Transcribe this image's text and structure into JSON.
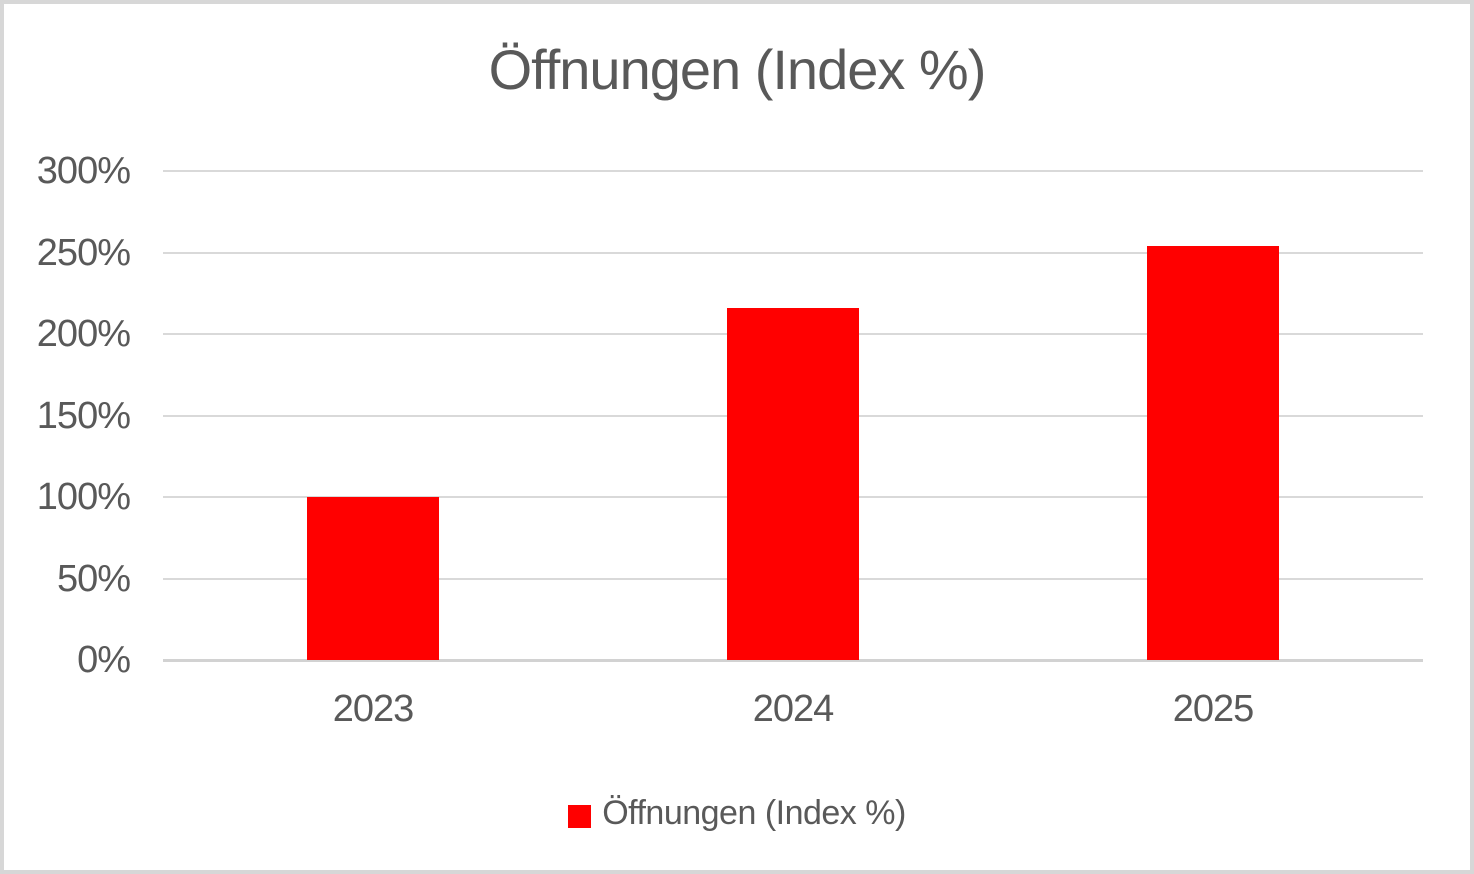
{
  "chart_data": {
    "type": "bar",
    "title": "Öffnungen (Index %)",
    "categories": [
      "2023",
      "2024",
      "2025"
    ],
    "series": [
      {
        "name": "Öffnungen (Index %)",
        "values": [
          100,
          216,
          254
        ]
      }
    ],
    "xlabel": "",
    "ylabel": "",
    "ylim": [
      0,
      300
    ],
    "ytick_step": 50,
    "ytick_labels": [
      "0%",
      "50%",
      "100%",
      "150%",
      "200%",
      "250%",
      "300%"
    ],
    "grid": true,
    "legend_position": "bottom",
    "colors": {
      "series": "#FF0000",
      "text": "#595959",
      "gridline": "#D9D9D9",
      "axis_line": "#D2D2D2",
      "background": "#FFFFFF",
      "frame_border": "#D7D7D7"
    }
  },
  "legend": {
    "label": "Öffnungen (Index %)"
  }
}
